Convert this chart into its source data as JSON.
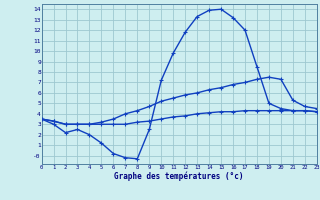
{
  "title": "Graphe des températures (°c)",
  "bg_color": "#ceeef0",
  "grid_color": "#9ec8d0",
  "line_color": "#1040c0",
  "xlim": [
    0,
    23
  ],
  "ylim": [
    -0.8,
    14.5
  ],
  "ytick_vals": [
    14,
    13,
    12,
    11,
    10,
    9,
    8,
    7,
    6,
    5,
    4,
    3,
    2,
    1,
    0
  ],
  "ytick_labels": [
    "14",
    "13",
    "12",
    "11",
    "10",
    "9",
    "8",
    "7",
    "6",
    "5",
    "4",
    "3",
    "2",
    "1",
    "-0"
  ],
  "xticks": [
    0,
    1,
    2,
    3,
    4,
    5,
    6,
    7,
    8,
    9,
    10,
    11,
    12,
    13,
    14,
    15,
    16,
    17,
    18,
    19,
    20,
    21,
    22,
    23
  ],
  "series": {
    "temp_curve": {
      "x": [
        0,
        1,
        2,
        3,
        4,
        5,
        6,
        7,
        8,
        9,
        10,
        11,
        12,
        13,
        14,
        15,
        16,
        17,
        18,
        19,
        20,
        21,
        22,
        23
      ],
      "y": [
        3.5,
        3.0,
        2.2,
        2.5,
        2.0,
        1.2,
        0.2,
        -0.2,
        -0.3,
        2.5,
        7.2,
        9.8,
        11.8,
        13.3,
        13.9,
        14.0,
        13.2,
        12.0,
        8.5,
        5.0,
        4.5,
        4.3,
        4.3,
        4.2
      ]
    },
    "temp_max": {
      "x": [
        0,
        1,
        2,
        3,
        4,
        5,
        6,
        7,
        8,
        9,
        10,
        11,
        12,
        13,
        14,
        15,
        16,
        17,
        18,
        19,
        20,
        21,
        22,
        23
      ],
      "y": [
        3.5,
        3.3,
        3.0,
        3.0,
        3.0,
        3.2,
        3.5,
        4.0,
        4.3,
        4.7,
        5.2,
        5.5,
        5.8,
        6.0,
        6.3,
        6.5,
        6.8,
        7.0,
        7.3,
        7.5,
        7.3,
        5.3,
        4.7,
        4.5
      ]
    },
    "temp_min": {
      "x": [
        0,
        1,
        2,
        3,
        4,
        5,
        6,
        7,
        8,
        9,
        10,
        11,
        12,
        13,
        14,
        15,
        16,
        17,
        18,
        19,
        20,
        21,
        22,
        23
      ],
      "y": [
        3.5,
        3.3,
        3.0,
        3.0,
        3.0,
        3.0,
        3.0,
        3.0,
        3.2,
        3.3,
        3.5,
        3.7,
        3.8,
        4.0,
        4.1,
        4.2,
        4.2,
        4.3,
        4.3,
        4.3,
        4.3,
        4.3,
        4.3,
        4.2
      ]
    }
  }
}
